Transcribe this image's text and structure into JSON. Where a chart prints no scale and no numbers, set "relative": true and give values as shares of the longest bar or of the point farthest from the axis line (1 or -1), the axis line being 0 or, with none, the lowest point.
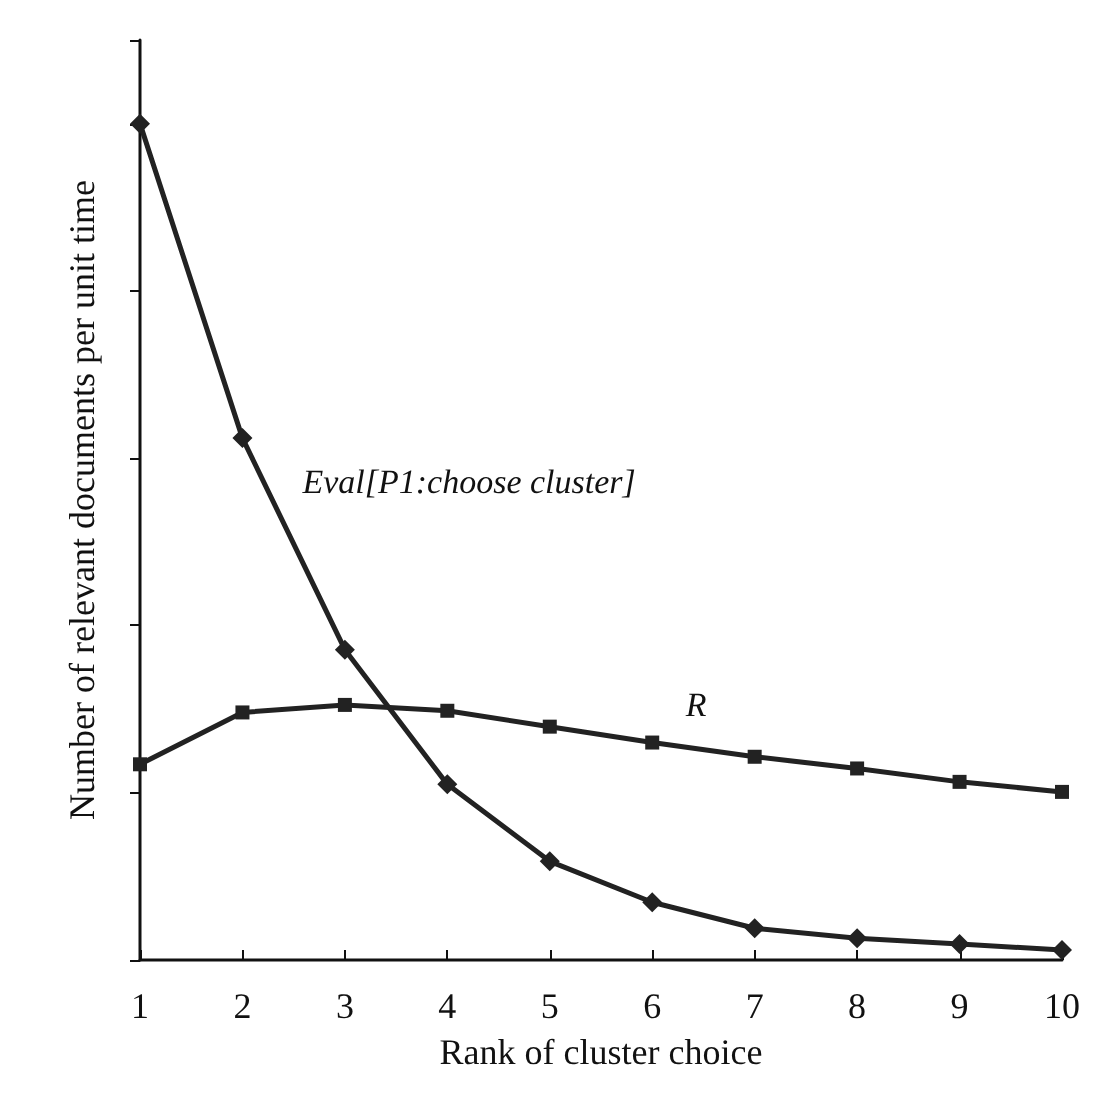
{
  "chart_data": {
    "type": "line",
    "relative": true,
    "xlabel": "Rank of cluster choice",
    "ylabel": "Number of relevant documents per unit time",
    "categories": [
      "1",
      "2",
      "3",
      "4",
      "5",
      "6",
      "7",
      "8",
      "9",
      "10"
    ],
    "legend": false,
    "grid": false,
    "series": [
      {
        "name": "Eval[P1:choose cluster]",
        "color": "#222222",
        "marker": "diamond",
        "values": [
          1,
          0.624,
          0.371,
          0.21,
          0.118,
          0.069,
          0.038,
          0.026,
          0.019,
          0.012
        ]
      },
      {
        "name": "R",
        "color": "#222222",
        "marker": "square",
        "values": [
          0.234,
          0.296,
          0.305,
          0.298,
          0.279,
          0.26,
          0.243,
          0.229,
          0.213,
          0.201
        ]
      }
    ]
  }
}
